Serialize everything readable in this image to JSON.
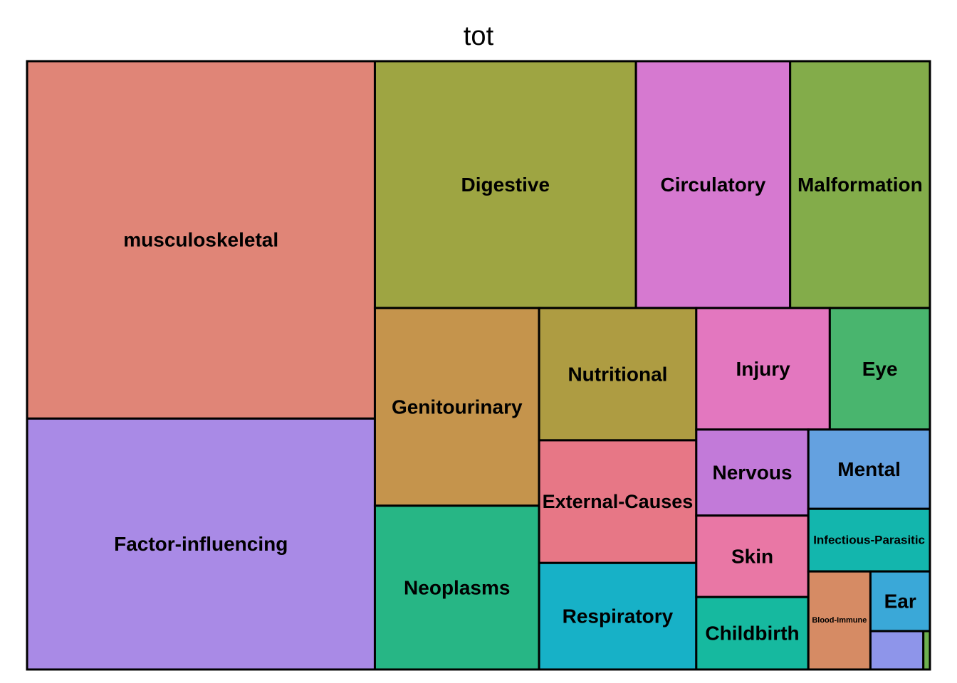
{
  "chart_data": {
    "type": "treemap",
    "title": "tot",
    "tiles": [
      {
        "name": "musculoskeletal",
        "label": "musculoskeletal",
        "value": 245,
        "color": "#e08577"
      },
      {
        "name": "Factor-influencing",
        "label": "Factor-influencing",
        "value": 172,
        "color": "#a98ae6"
      },
      {
        "name": "Digestive",
        "label": "Digestive",
        "value": 127,
        "color": "#9ea542"
      },
      {
        "name": "Circulatory",
        "label": "Circulatory",
        "value": 75,
        "color": "#d679d0"
      },
      {
        "name": "Malformation",
        "label": "Malformation",
        "value": 68,
        "color": "#83ac4a"
      },
      {
        "name": "Genitourinary",
        "label": "Genitourinary",
        "value": 64,
        "color": "#c5944c"
      },
      {
        "name": "Neoplasms",
        "label": "Neoplasms",
        "value": 53,
        "color": "#27b685"
      },
      {
        "name": "Nutritional",
        "label": "Nutritional",
        "value": 41,
        "color": "#ae9c42"
      },
      {
        "name": "External-Causes",
        "label": "External-Causes",
        "value": 38,
        "color": "#e77786"
      },
      {
        "name": "Respiratory",
        "label": "Respiratory",
        "value": 33,
        "color": "#17b1c7"
      },
      {
        "name": "Injury",
        "label": "Injury",
        "value": 32,
        "color": "#e377bf"
      },
      {
        "name": "Eye",
        "label": "Eye",
        "value": 24,
        "color": "#49b56e"
      },
      {
        "name": "Nervous",
        "label": "Nervous",
        "value": 19,
        "color": "#c27ad9"
      },
      {
        "name": "Mental",
        "label": "Mental",
        "value": 19,
        "color": "#64a1e0"
      },
      {
        "name": "Skin",
        "label": "Skin",
        "value": 18,
        "color": "#e977a5"
      },
      {
        "name": "Childbirth",
        "label": "Childbirth",
        "value": 16,
        "color": "#16b99f"
      },
      {
        "name": "Infectious-Parasitic",
        "label": "Infectious-Parasitic",
        "value": 15,
        "color": "#13b6ad"
      },
      {
        "name": "Blood-Immune",
        "label": "Blood-Immune",
        "value": 12,
        "color": "#d68b64"
      },
      {
        "name": "Ear",
        "label": "Ear",
        "value": 7,
        "color": "#3aa8d8"
      },
      {
        "name": "unlabeled-1",
        "label": "",
        "value": 4,
        "color": "#8e95ea"
      },
      {
        "name": "unlabeled-2",
        "label": "",
        "value": 0.5,
        "color": "#6db04e"
      }
    ]
  }
}
